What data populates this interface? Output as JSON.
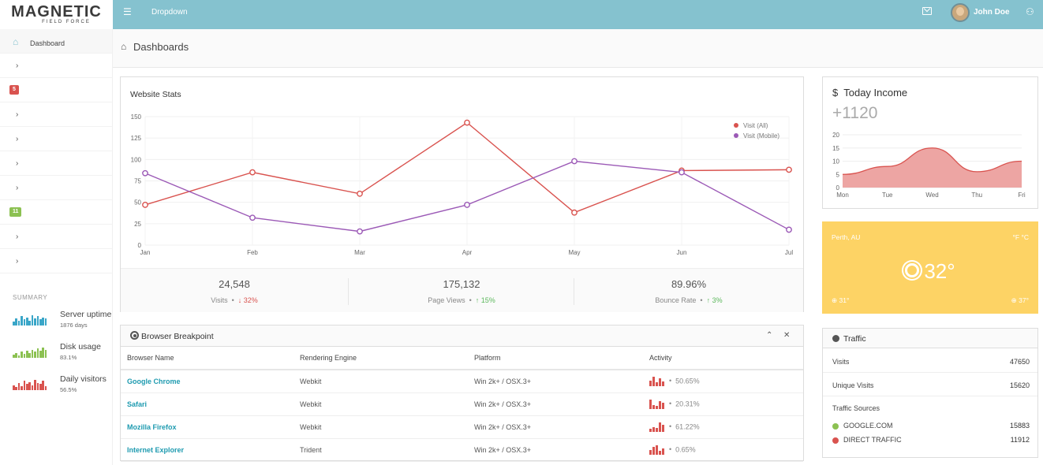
{
  "brand": {
    "name": "MAGNETIC",
    "tagline": "FIELD FORCE"
  },
  "topbar": {
    "dropdown_label": "Dropdown",
    "user_name": "John Doe"
  },
  "sidebar": {
    "active_label": "Dashboard",
    "badges": [
      {
        "text": "5",
        "color": "#d9534f"
      },
      {
        "text": "11",
        "color": "#8cc152"
      }
    ],
    "summary_label": "SUMMARY",
    "summary": [
      {
        "title": "Server uptime",
        "value": "1876 days",
        "color": "#3aa6c8",
        "bars": [
          4,
          7,
          5,
          9,
          6,
          8,
          5,
          10,
          7,
          9,
          6,
          8,
          7
        ]
      },
      {
        "title": "Disk usage",
        "value": "83.1%",
        "color": "#8cc152",
        "bars": [
          3,
          5,
          2,
          6,
          4,
          7,
          5,
          8,
          6,
          9,
          7,
          10,
          8
        ]
      },
      {
        "title": "Daily visitors",
        "value": "56.5%",
        "color": "#d9534f",
        "bars": [
          5,
          3,
          7,
          4,
          9,
          6,
          8,
          5,
          10,
          7,
          6,
          9,
          4
        ]
      }
    ]
  },
  "page": {
    "title": "Dashboards"
  },
  "website_stats": {
    "title": "Website Stats",
    "footer": [
      {
        "value": "24,548",
        "label": "Visits",
        "change": "32%",
        "direction": "down"
      },
      {
        "value": "175,132",
        "label": "Page Views",
        "change": "15%",
        "direction": "up"
      },
      {
        "value": "89.96%",
        "label": "Bounce Rate",
        "change": "3%",
        "direction": "up"
      }
    ]
  },
  "browser_table": {
    "title": "Browser Breakpoint",
    "columns": [
      "Browser Name",
      "Rendering Engine",
      "Platform",
      "Activity"
    ],
    "rows": [
      {
        "name": "Google Chrome",
        "engine": "Webkit",
        "platform": "Win 2k+ / OSX.3+",
        "activity": "50.65%",
        "bars": [
          6,
          10,
          4,
          8,
          5
        ]
      },
      {
        "name": "Safari",
        "engine": "Webkit",
        "platform": "Win 2k+ / OSX.3+",
        "activity": "20.31%",
        "bars": [
          10,
          4,
          3,
          8,
          6
        ]
      },
      {
        "name": "Mozilla Firefox",
        "engine": "Webkit",
        "platform": "Win 2k+ / OSX.3+",
        "activity": "61.22%",
        "bars": [
          3,
          5,
          4,
          10,
          7
        ]
      },
      {
        "name": "Internet Explorer",
        "engine": "Trident",
        "platform": "Win 2k+ / OSX.3+",
        "activity": "0.65%",
        "bars": [
          5,
          8,
          10,
          4,
          6
        ]
      }
    ]
  },
  "income": {
    "title": "Today Income",
    "currency_symbol": "$",
    "value": "+1120"
  },
  "weather": {
    "location": "Perth, AU",
    "units": "°F  °C",
    "temp": "32°",
    "low": "31°",
    "high": "37°"
  },
  "traffic": {
    "title": "Traffic",
    "rows": [
      {
        "label": "Visits",
        "value": "47650"
      },
      {
        "label": "Unique Visits",
        "value": "15620"
      }
    ],
    "sources_label": "Traffic Sources",
    "sources": [
      {
        "label": "GOOGLE.COM",
        "value": "15883",
        "color": "#8cc152"
      },
      {
        "label": "DIRECT TRAFFIC",
        "value": "11912",
        "color": "#d9534f"
      }
    ]
  },
  "chart_data": [
    {
      "type": "line",
      "x": [
        "Jan",
        "Feb",
        "Mar",
        "Apr",
        "May",
        "Jun",
        "Jul"
      ],
      "ylim": [
        0,
        150
      ],
      "yticks": [
        0,
        25,
        50,
        75,
        100,
        125,
        150
      ],
      "grid": true,
      "legend": "top-right",
      "series": [
        {
          "name": "Visit (All)",
          "color": "#d9534f",
          "values": [
            47,
            85,
            60,
            143,
            38,
            87,
            88
          ]
        },
        {
          "name": "Visit (Mobile)",
          "color": "#9b59b6",
          "values": [
            84,
            32,
            16,
            47,
            98,
            85,
            18
          ]
        }
      ]
    },
    {
      "type": "area",
      "x": [
        "Mon",
        "Tue",
        "Wed",
        "Thu",
        "Fri"
      ],
      "ylim": [
        0,
        20
      ],
      "yticks": [
        0,
        5,
        10,
        15,
        20
      ],
      "grid": true,
      "series": [
        {
          "name": "",
          "color": "#e8908d",
          "values": [
            5,
            8,
            15,
            6,
            10
          ]
        }
      ]
    }
  ]
}
